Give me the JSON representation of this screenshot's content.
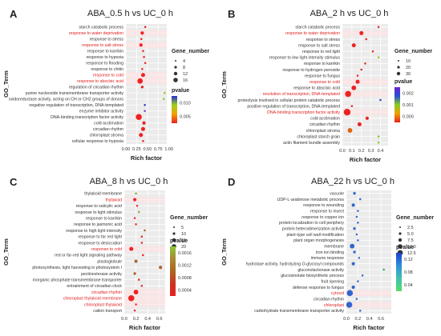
{
  "chart_data": [
    {
      "panel_letter": "A",
      "title": "ABA_0.5 h vs UC_0 h",
      "type": "scatter",
      "xlabel": "Rich factor",
      "ylabel": "GO_Term",
      "xlim": [
        0,
        0.95
      ],
      "x_tick_labels": [
        "0.00",
        "0.25",
        "0.50",
        "0.75",
        "1.00"
      ],
      "size_legend": {
        "title": "Gene_number",
        "values": [
          4,
          8,
          12,
          16
        ]
      },
      "color_legend": {
        "title": "pvalue",
        "ticks": [
          "0.010",
          "0.005"
        ]
      },
      "terms": [
        {
          "term": "starch catabolic process",
          "x": 0.45,
          "size": 3,
          "color": "#ee2222",
          "highlight": false
        },
        {
          "term": "response to water deprivation",
          "x": 0.38,
          "size": 5,
          "color": "#ee2222",
          "highlight": true
        },
        {
          "term": "response to stress",
          "x": 0.36,
          "size": 3,
          "color": "#ee2222",
          "highlight": false
        },
        {
          "term": "response to salt stress",
          "x": 0.35,
          "size": 5,
          "color": "#ee2222",
          "highlight": true
        },
        {
          "term": "response to karrikin",
          "x": 0.4,
          "size": 3,
          "color": "#ee2222",
          "highlight": false
        },
        {
          "term": "response to hypoxia",
          "x": 0.42,
          "size": 3,
          "color": "#ee2222",
          "highlight": false
        },
        {
          "term": "response to flooding",
          "x": 0.45,
          "size": 3,
          "color": "#ee2222",
          "highlight": false
        },
        {
          "term": "response to chitin",
          "x": 0.38,
          "size": 3,
          "color": "#ee2222",
          "highlight": false
        },
        {
          "term": "response to cold",
          "x": 0.4,
          "size": 6,
          "color": "#ee2222",
          "highlight": true
        },
        {
          "term": "response to abscisic acid",
          "x": 0.33,
          "size": 8,
          "color": "#ee2222",
          "highlight": true
        },
        {
          "term": "regulation of circadian rhythm",
          "x": 0.38,
          "size": 4,
          "color": "#ee2222",
          "highlight": false
        },
        {
          "term": "purine nucleoside transmembrane transporter activity",
          "x": 0.9,
          "size": 3,
          "color": "#88cc22",
          "highlight": false
        },
        {
          "term": "oxidoreductase activity, acting on CH or CH2 groups of donors",
          "x": 0.88,
          "size": 3,
          "color": "#88cc22",
          "highlight": false
        },
        {
          "term": "negative regulation of transcription, DNA-templated",
          "x": 0.44,
          "size": 3,
          "color": "#3333cc",
          "highlight": false
        },
        {
          "term": "enzyme inhibitor activity",
          "x": 0.44,
          "size": 3,
          "color": "#8844cc",
          "highlight": false
        },
        {
          "term": "DNA-binding transcription factor activity",
          "x": 0.3,
          "size": 9,
          "color": "#ee2222",
          "highlight": false
        },
        {
          "term": "cold acclimation",
          "x": 0.42,
          "size": 5,
          "color": "#ee2222",
          "highlight": false
        },
        {
          "term": "circadian rhythm",
          "x": 0.4,
          "size": 6,
          "color": "#ee2222",
          "highlight": false
        },
        {
          "term": "chloroplast stroma",
          "x": 0.35,
          "size": 6,
          "color": "#ee2222",
          "highlight": false
        },
        {
          "term": "cellular response to hypoxia",
          "x": 0.4,
          "size": 3,
          "color": "#ee2222",
          "highlight": false
        }
      ]
    },
    {
      "panel_letter": "B",
      "title": "ABA_2 h vs UC_0 h",
      "type": "scatter",
      "xlabel": "Rich factor",
      "ylabel": "GO_Term",
      "xlim": [
        0,
        0.48
      ],
      "x_tick_labels": [
        "0.0",
        "0.1",
        "0.2",
        "0.3",
        "0.4"
      ],
      "size_legend": {
        "title": "Gene_number",
        "values": [
          10,
          20,
          30
        ]
      },
      "color_legend": {
        "title": "pvalue",
        "ticks": [
          "0.002",
          "0.001",
          "0.000"
        ]
      },
      "terms": [
        {
          "term": "starch catabolic process",
          "x": 0.38,
          "size": 3,
          "color": "#ee2222",
          "highlight": false
        },
        {
          "term": "response to water deprivation",
          "x": 0.2,
          "size": 6,
          "color": "#ee2222",
          "highlight": true
        },
        {
          "term": "response to stress",
          "x": 0.25,
          "size": 3,
          "color": "#ee2222",
          "highlight": false
        },
        {
          "term": "response to salt stress",
          "x": 0.12,
          "size": 6,
          "color": "#ee2222",
          "highlight": false
        },
        {
          "term": "response to red light",
          "x": 0.32,
          "size": 3,
          "color": "#ee2222",
          "highlight": false
        },
        {
          "term": "response to low light intensity stimulus",
          "x": 0.38,
          "size": 3,
          "color": "#88cc22",
          "highlight": false
        },
        {
          "term": "response to karrikin",
          "x": 0.24,
          "size": 3,
          "color": "#ee2222",
          "highlight": false
        },
        {
          "term": "response to hydrogen peroxide",
          "x": 0.2,
          "size": 3,
          "color": "#ee2222",
          "highlight": false
        },
        {
          "term": "response to fungus",
          "x": 0.16,
          "size": 3,
          "color": "#ee2222",
          "highlight": false
        },
        {
          "term": "response to cold",
          "x": 0.16,
          "size": 6,
          "color": "#ee2222",
          "highlight": true
        },
        {
          "term": "response to abscisic acid",
          "x": 0.12,
          "size": 7,
          "color": "#ee2222",
          "highlight": false
        },
        {
          "term": "resolution of transcription, DNA-templated",
          "x": 0.06,
          "size": 9,
          "color": "#ee2222",
          "highlight": true
        },
        {
          "term": "proteolysis involved in cellular protein catabolic process",
          "x": 0.4,
          "size": 3,
          "color": "#3333cc",
          "highlight": false
        },
        {
          "term": "positive regulation of transcription, DNA-templated",
          "x": 0.1,
          "size": 3,
          "color": "#ee2222",
          "highlight": false
        },
        {
          "term": "DNA-binding transcription factor activity",
          "x": 0.05,
          "size": 10,
          "color": "#ee2222",
          "highlight": true
        },
        {
          "term": "cold acclimation",
          "x": 0.26,
          "size": 5,
          "color": "#ee2222",
          "highlight": false
        },
        {
          "term": "circadian rhythm",
          "x": 0.18,
          "size": 6,
          "color": "#ee2222",
          "highlight": false
        },
        {
          "term": "chloroplast stroma",
          "x": 0.08,
          "size": 7,
          "color": "#dd6611",
          "highlight": false
        },
        {
          "term": "chloroplast starch grain",
          "x": 0.38,
          "size": 3,
          "color": "#88cc22",
          "highlight": false
        },
        {
          "term": "actin filament bundle assembly",
          "x": 0.38,
          "size": 3,
          "color": "#88cc22",
          "highlight": false
        }
      ]
    },
    {
      "panel_letter": "C",
      "title": "ABA_8 h vs UC_0 h",
      "type": "scatter",
      "xlabel": "Rich factor",
      "ylabel": "GO_Term",
      "xlim": [
        0,
        0.7
      ],
      "x_tick_labels": [
        "0.0",
        "0.2",
        "0.4",
        "0.6"
      ],
      "size_legend": {
        "title": "Gene_number",
        "values": [
          5,
          10,
          15,
          20
        ]
      },
      "color_legend": {
        "title": "pvalue",
        "ticks": [
          "0.0016",
          "0.0012",
          "0.0008",
          "0.0004"
        ]
      },
      "terms": [
        {
          "term": "thylakoid membrane",
          "x": 0.2,
          "size": 3,
          "color": "#88aa33",
          "highlight": false
        },
        {
          "term": "thylakoid",
          "x": 0.18,
          "size": 5,
          "color": "#ee2222",
          "highlight": true
        },
        {
          "term": "response to salicylic acid",
          "x": 0.22,
          "size": 3,
          "color": "#ee2222",
          "highlight": false
        },
        {
          "term": "response to light stimulus",
          "x": 0.25,
          "size": 3,
          "color": "#88aa33",
          "highlight": false
        },
        {
          "term": "response to karrikin",
          "x": 0.18,
          "size": 3,
          "color": "#ee2222",
          "highlight": false
        },
        {
          "term": "response to jasmonic acid",
          "x": 0.2,
          "size": 3,
          "color": "#ee2222",
          "highlight": false
        },
        {
          "term": "response to high light intensity",
          "x": 0.35,
          "size": 3,
          "color": "#aa6633",
          "highlight": false
        },
        {
          "term": "response to far red light",
          "x": 0.3,
          "size": 3,
          "color": "#ee2222",
          "highlight": false
        },
        {
          "term": "response to desiccation",
          "x": 0.3,
          "size": 3,
          "color": "#ee2222",
          "highlight": false
        },
        {
          "term": "response to cold",
          "x": 0.12,
          "size": 6,
          "color": "#ee2222",
          "highlight": true
        },
        {
          "term": "red or far-red light signaling pathway",
          "x": 0.32,
          "size": 3,
          "color": "#ee2222",
          "highlight": false
        },
        {
          "term": "plastoglobule",
          "x": 0.2,
          "size": 5,
          "color": "#aa6633",
          "highlight": false
        },
        {
          "term": "photosynthesis, light harvesting in photosystem I",
          "x": 0.62,
          "size": 5,
          "color": "#aa6633",
          "highlight": false
        },
        {
          "term": "pectinesterase activity",
          "x": 0.18,
          "size": 4,
          "color": "#aa6633",
          "highlight": false
        },
        {
          "term": "inorganic phosphate transmembrane transporter",
          "x": 0.25,
          "size": 3,
          "color": "#ee2222",
          "highlight": false
        },
        {
          "term": "entrainment of circadian clock",
          "x": 0.3,
          "size": 3,
          "color": "#ee2222",
          "highlight": false
        },
        {
          "term": "circadian rhythm",
          "x": 0.2,
          "size": 7,
          "color": "#ee2222",
          "highlight": true
        },
        {
          "term": "chloroplast thylakoid membrane",
          "x": 0.12,
          "size": 9,
          "color": "#ee2222",
          "highlight": true
        },
        {
          "term": "chloroplast thylakoid",
          "x": 0.2,
          "size": 3,
          "color": "#ee2222",
          "highlight": true
        },
        {
          "term": "cation transport",
          "x": 0.18,
          "size": 3,
          "color": "#ee2222",
          "highlight": false
        }
      ]
    },
    {
      "panel_letter": "D",
      "title": "ABA_22 h vs UC_0 h",
      "type": "scatter",
      "xlabel": "Rich factor",
      "ylabel": "GO_Term",
      "xlim": [
        0,
        0.78
      ],
      "x_tick_labels": [
        "0.0",
        "0.2",
        "0.4",
        "0.6"
      ],
      "size_legend": {
        "title": "Gene_number",
        "values": [
          "2.5",
          "5.0",
          "7.5",
          "10.0",
          "12.5"
        ]
      },
      "color_legend": {
        "title": "pvalue",
        "ticks": [
          "0.12",
          "0.08",
          "0.04"
        ]
      },
      "terms": [
        {
          "term": "vacuole",
          "x": 0.14,
          "size": 4,
          "color": "#3366cc",
          "highlight": false
        },
        {
          "term": "UDP-L-arabinose metabolic process",
          "x": 0.24,
          "size": 3,
          "color": "#3366cc",
          "highlight": false
        },
        {
          "term": "response to wounding",
          "x": 0.12,
          "size": 5,
          "color": "#3366cc",
          "highlight": false
        },
        {
          "term": "response to insect",
          "x": 0.2,
          "size": 3,
          "color": "#3366cc",
          "highlight": false
        },
        {
          "term": "response to copper ion",
          "x": 0.18,
          "size": 3,
          "color": "#3366cc",
          "highlight": false
        },
        {
          "term": "protein localization to cell periphery",
          "x": 0.2,
          "size": 3,
          "color": "#3366cc",
          "highlight": false
        },
        {
          "term": "protein heterodimerization activity",
          "x": 0.14,
          "size": 4,
          "color": "#3366cc",
          "highlight": false
        },
        {
          "term": "plant-type cell wall modification",
          "x": 0.18,
          "size": 3,
          "color": "#3366cc",
          "highlight": false
        },
        {
          "term": "plant organ morphogenesis",
          "x": 0.2,
          "size": 3,
          "color": "#3366cc",
          "highlight": false
        },
        {
          "term": "membrane",
          "x": 0.1,
          "size": 7,
          "color": "#3366cc",
          "highlight": false
        },
        {
          "term": "iron ion binding",
          "x": 0.14,
          "size": 4,
          "color": "#3366cc",
          "highlight": false
        },
        {
          "term": "immune response",
          "x": 0.22,
          "size": 3,
          "color": "#3366cc",
          "highlight": false
        },
        {
          "term": "hydrolase activity, hydrolyzing O-glycosyl compounds",
          "x": 0.12,
          "size": 5,
          "color": "#3366cc",
          "highlight": false
        },
        {
          "term": "gluconolactonase activity",
          "x": 0.65,
          "size": 3,
          "color": "#33aa66",
          "highlight": false
        },
        {
          "term": "glucosinolate biosynthetic process",
          "x": 0.28,
          "size": 3,
          "color": "#3366cc",
          "highlight": false
        },
        {
          "term": "fruit ripening",
          "x": 0.2,
          "size": 3,
          "color": "#3366cc",
          "highlight": false
        },
        {
          "term": "defense response to fungus",
          "x": 0.12,
          "size": 5,
          "color": "#3366cc",
          "highlight": false
        },
        {
          "term": "cytosol",
          "x": 0.06,
          "size": 9,
          "color": "#3366cc",
          "highlight": true
        },
        {
          "term": "circadian rhythm",
          "x": 0.18,
          "size": 3,
          "color": "#3366cc",
          "highlight": false
        },
        {
          "term": "chloroplast",
          "x": 0.05,
          "size": 9,
          "color": "#3366cc",
          "highlight": true
        },
        {
          "term": "carbohydrate transmembrane transporter activity",
          "x": 0.24,
          "size": 3,
          "color": "#3366cc",
          "highlight": false
        }
      ]
    }
  ]
}
